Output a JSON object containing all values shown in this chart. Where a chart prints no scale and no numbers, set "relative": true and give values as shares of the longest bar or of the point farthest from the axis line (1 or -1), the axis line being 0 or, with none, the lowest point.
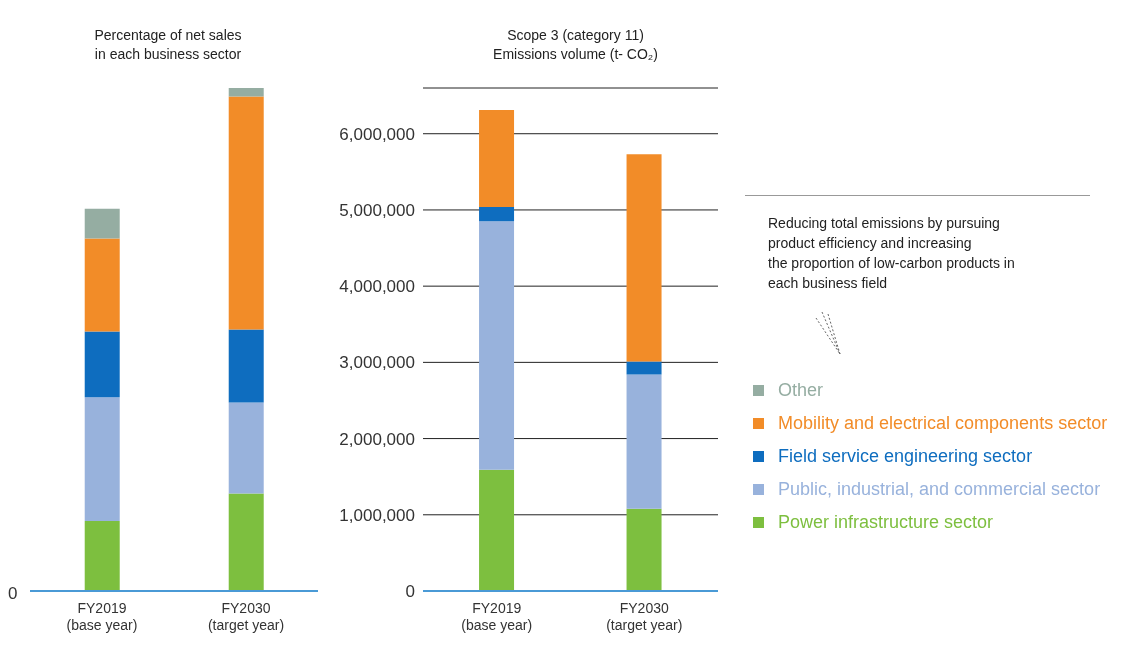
{
  "chart_data": [
    {
      "type": "bar",
      "title": "Percentage of net sales\nin each business sector",
      "categories": [
        "FY2019\n(base year)",
        "FY2030\n(target year)"
      ],
      "stacked": true,
      "relative": true,
      "annotations": [
        "0"
      ],
      "series": [
        {
          "color": "#7dbf3f",
          "values": [
            0.139,
            0.194
          ]
        },
        {
          "color": "#98b2dc",
          "values": [
            0.246,
            0.181
          ]
        },
        {
          "color": "#0e6dbf",
          "values": [
            0.131,
            0.145
          ]
        },
        {
          "color": "#f28c28",
          "values": [
            0.185,
            0.463
          ]
        },
        {
          "color": "#95ada2",
          "values": [
            0.059,
            0.017
          ]
        }
      ]
    },
    {
      "type": "bar",
      "title": "Scope 3 (category 11)\nEmissions volume (t- CO₂)",
      "categories": [
        "FY2019\n(base year)",
        "FY2030\n(target year)"
      ],
      "stacked": true,
      "ylim": [
        0,
        6600000
      ],
      "yticks": [
        0,
        {
          "value": 1000000,
          "label": "1,000,000"
        },
        {
          "value": 2000000,
          "label": "2,000,000"
        },
        {
          "value": 3000000,
          "label": "3,000,000"
        },
        {
          "value": 4000000,
          "label": "4,000,000"
        },
        {
          "value": 5000000,
          "label": "5,000,000"
        },
        {
          "value": 6000000,
          "label": "6,000,000"
        }
      ],
      "grid": "y",
      "legend": "right",
      "annotations": [
        "Reducing total emissions by pursuing\nproduct efficiency and increasing\nthe proportion of low-carbon products in\neach business field"
      ],
      "series": [
        {
          "name": "Power infrastructure sector",
          "color": "#7dbf3f",
          "values": [
            1590000,
            1080000
          ]
        },
        {
          "name": "Public, industrial, and commercial sector",
          "color": "#98b2dc",
          "values": [
            3260000,
            1760000
          ]
        },
        {
          "name": "Field service engineering sector",
          "color": "#0e6dbf",
          "values": [
            190000,
            170000
          ]
        },
        {
          "name": "Mobility and electrical components sector",
          "color": "#f28c28",
          "values": [
            1270000,
            2720000
          ]
        },
        {
          "name": "Other",
          "color": "#95ada2",
          "values": [
            null,
            null
          ]
        }
      ]
    }
  ]
}
